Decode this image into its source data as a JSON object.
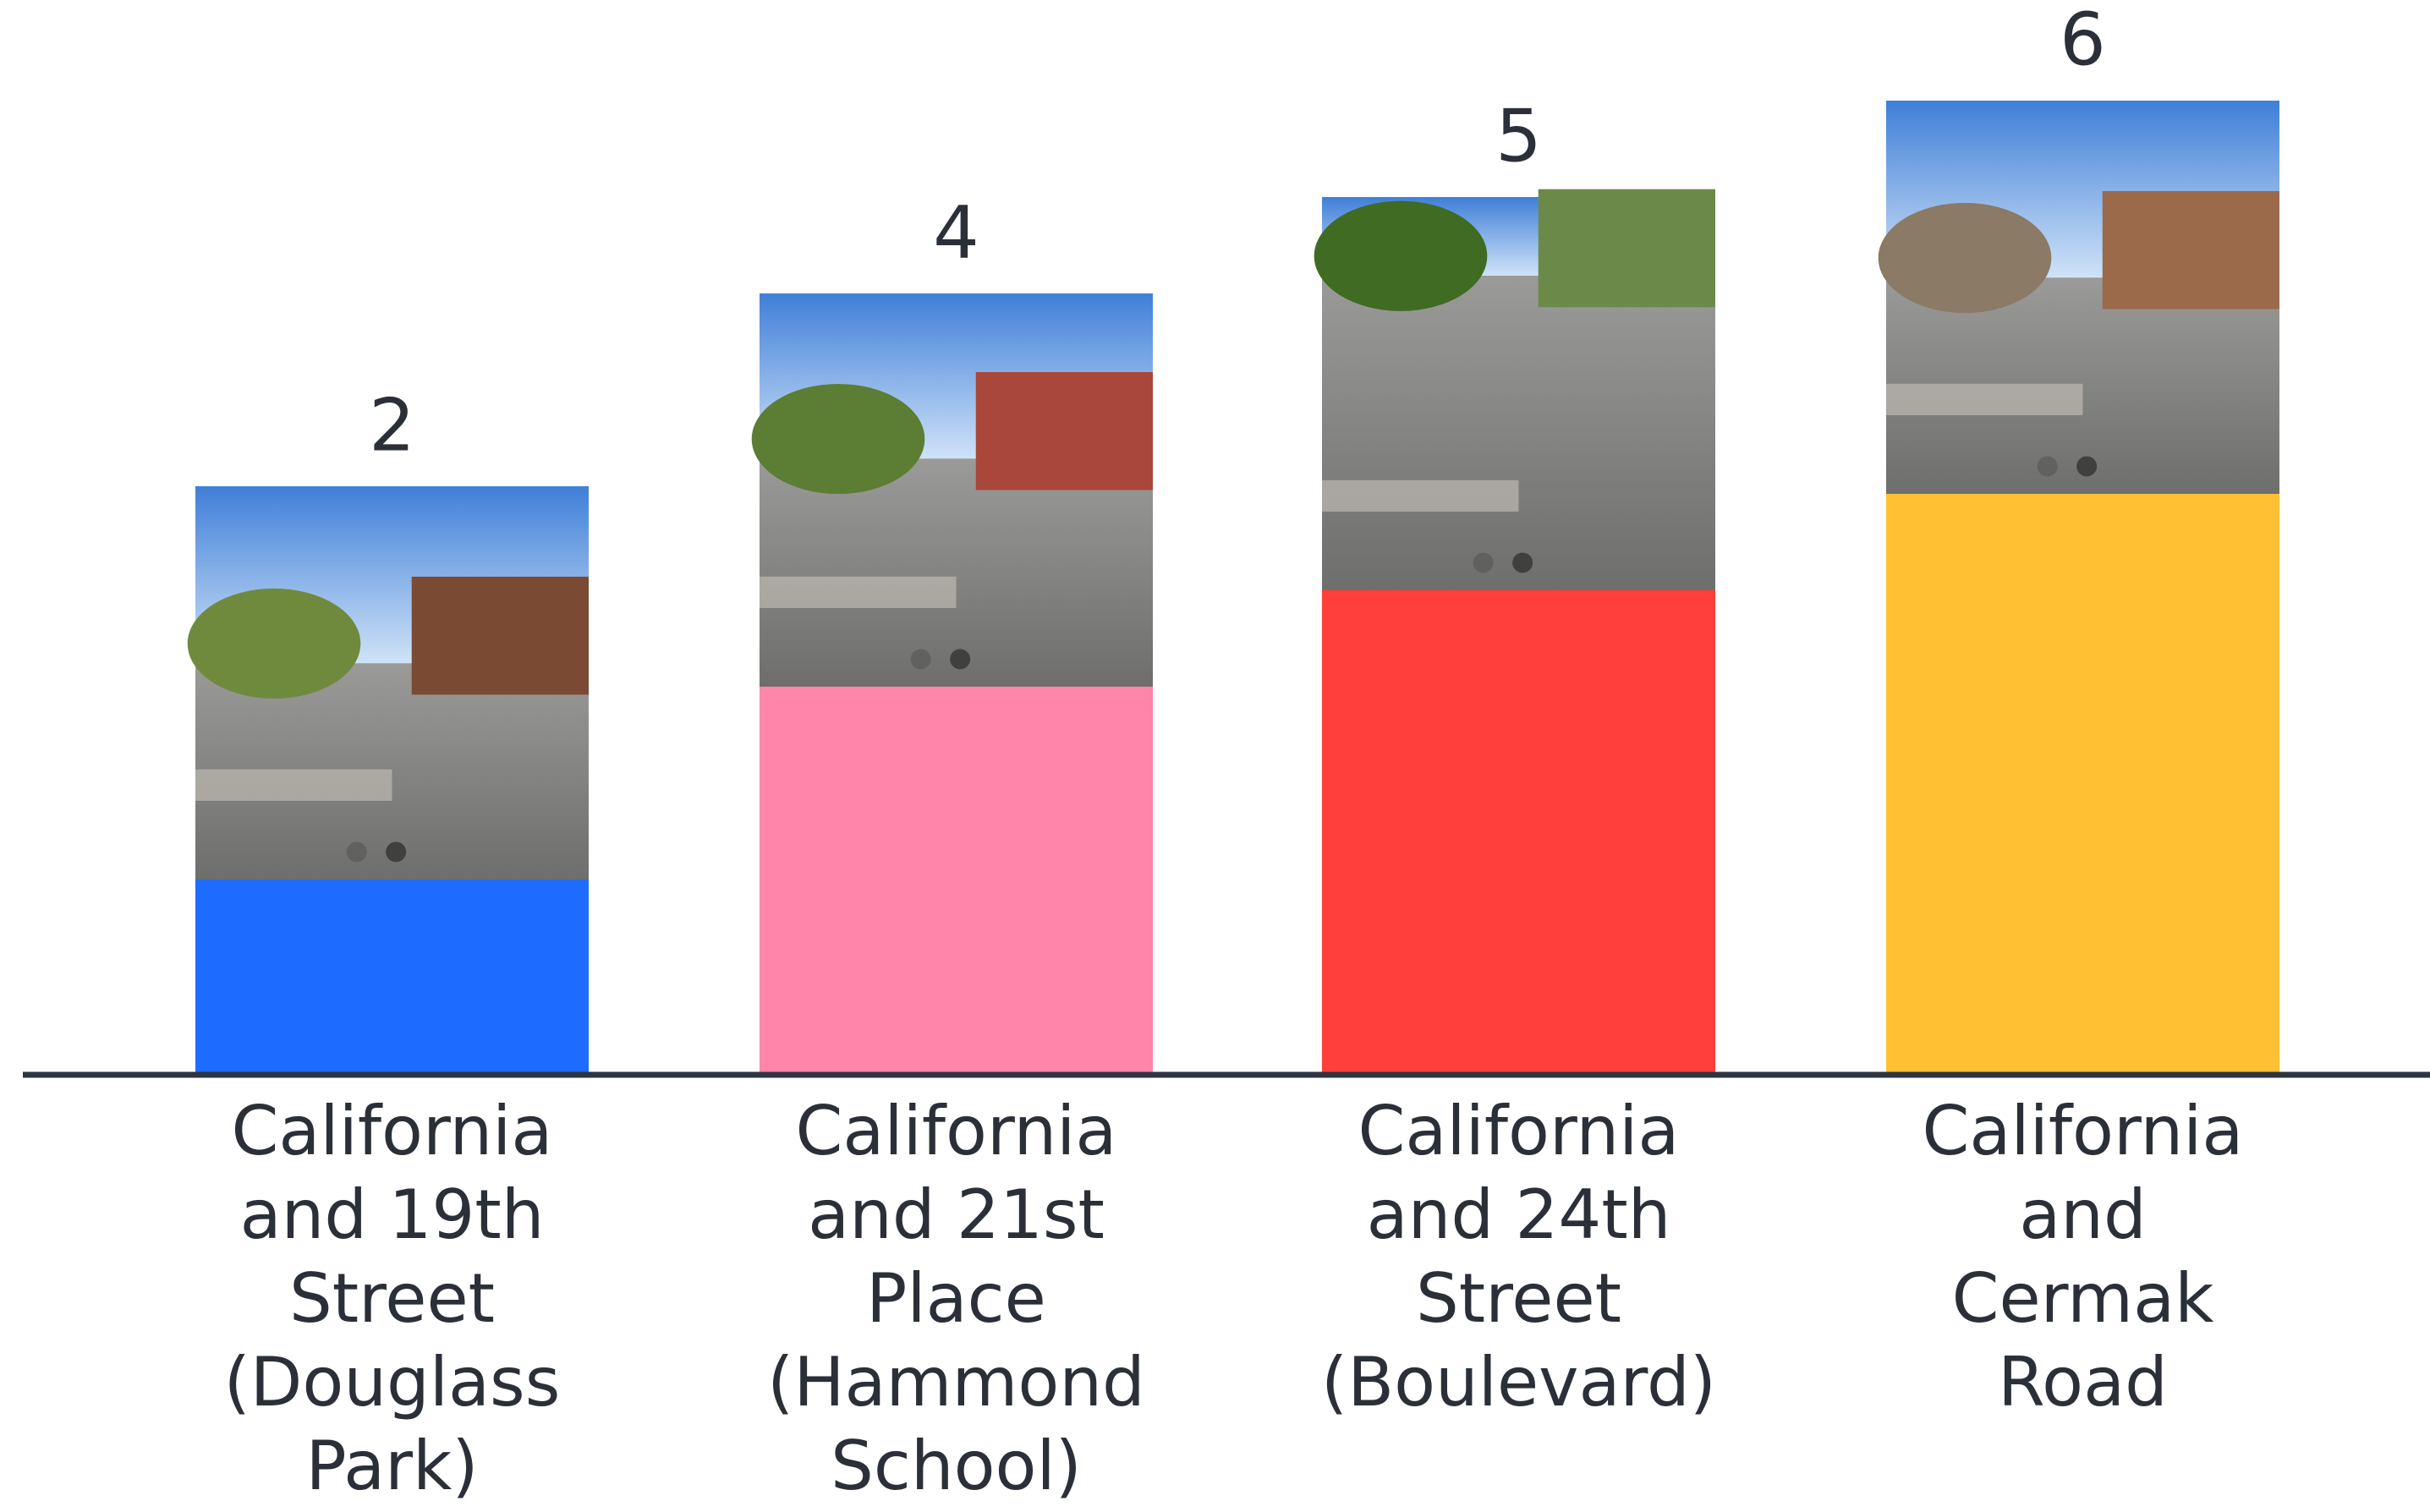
{
  "chart_data": {
    "type": "bar",
    "categories": [
      [
        "California",
        "and 19th",
        "Street",
        "(Douglass",
        "Park)"
      ],
      [
        "California",
        "and 21st",
        "Place",
        "(Hammond",
        "School)"
      ],
      [
        "California",
        "and 24th",
        "Street",
        "(Boulevard)"
      ],
      [
        "California",
        "and",
        "Cermak",
        "Road"
      ]
    ],
    "values": [
      2,
      4,
      5,
      6
    ],
    "colors": [
      "#1e6bff",
      "#ff85ab",
      "#ff3f3b",
      "#ffc133"
    ]
  }
}
